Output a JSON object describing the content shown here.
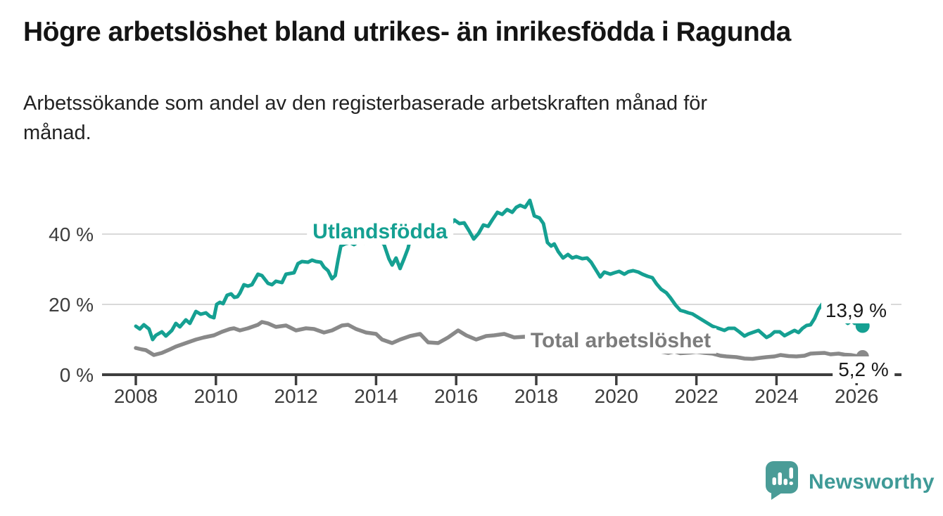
{
  "header": {
    "title": "Högre arbetslöshet bland utrikes- än inrikesfödda i Ragunda",
    "subtitle_line1": "Arbetssökande som andel av den registerbaserade arbetskraften månad för",
    "subtitle_line2": "månad."
  },
  "branding": {
    "logo_text": "Newsworthy",
    "logo_icon": "speech-bubble-bar-chart",
    "logo_color": "#4a9c97",
    "logo_text_color": "#3f9a97"
  },
  "chart_data": {
    "type": "line",
    "title": "Högre arbetslöshet bland utrikes- än inrikesfödda i Ragunda",
    "xlabel": "",
    "ylabel": "",
    "ylim": [
      0,
      52
    ],
    "xlim": [
      2007.2,
      2027.1
    ],
    "grid": "horizontal",
    "y_ticks": [
      {
        "value": 0,
        "label": "0 %"
      },
      {
        "value": 20,
        "label": "20 %"
      },
      {
        "value": 40,
        "label": "40 %"
      }
    ],
    "x_ticks": [
      {
        "value": 2008,
        "label": "2008"
      },
      {
        "value": 2010,
        "label": "2010"
      },
      {
        "value": 2012,
        "label": "2012"
      },
      {
        "value": 2014,
        "label": "2014"
      },
      {
        "value": 2016,
        "label": "2016"
      },
      {
        "value": 2018,
        "label": "2018"
      },
      {
        "value": 2020,
        "label": "2020"
      },
      {
        "value": 2022,
        "label": "2022"
      },
      {
        "value": 2024,
        "label": "2024"
      },
      {
        "value": 2026,
        "label": "2026"
      }
    ],
    "series": [
      {
        "name": "Utlandsfödda",
        "color": "#15a092",
        "end_label": "13,9 %",
        "end_value": 13.9,
        "points": [
          [
            2008.0,
            13.8
          ],
          [
            2008.1,
            13.0
          ],
          [
            2008.2,
            14.2
          ],
          [
            2008.33,
            13.0
          ],
          [
            2008.42,
            10.0
          ],
          [
            2008.5,
            11.2
          ],
          [
            2008.65,
            12.2
          ],
          [
            2008.75,
            11.0
          ],
          [
            2008.9,
            12.6
          ],
          [
            2009.0,
            14.6
          ],
          [
            2009.1,
            13.6
          ],
          [
            2009.25,
            15.6
          ],
          [
            2009.35,
            14.6
          ],
          [
            2009.5,
            18.0
          ],
          [
            2009.62,
            17.2
          ],
          [
            2009.75,
            17.6
          ],
          [
            2009.85,
            16.6
          ],
          [
            2009.95,
            16.2
          ],
          [
            2010.02,
            20.0
          ],
          [
            2010.1,
            20.6
          ],
          [
            2010.18,
            20.2
          ],
          [
            2010.28,
            22.6
          ],
          [
            2010.38,
            23.0
          ],
          [
            2010.46,
            22.0
          ],
          [
            2010.54,
            22.2
          ],
          [
            2010.6,
            23.2
          ],
          [
            2010.7,
            25.6
          ],
          [
            2010.8,
            25.2
          ],
          [
            2010.9,
            25.6
          ],
          [
            2011.05,
            28.6
          ],
          [
            2011.15,
            28.2
          ],
          [
            2011.3,
            26.0
          ],
          [
            2011.4,
            25.6
          ],
          [
            2011.5,
            26.6
          ],
          [
            2011.65,
            26.2
          ],
          [
            2011.75,
            28.6
          ],
          [
            2011.95,
            29.0
          ],
          [
            2012.05,
            31.6
          ],
          [
            2012.15,
            32.2
          ],
          [
            2012.3,
            32.0
          ],
          [
            2012.4,
            32.6
          ],
          [
            2012.5,
            32.2
          ],
          [
            2012.62,
            32.0
          ],
          [
            2012.7,
            30.6
          ],
          [
            2012.8,
            29.6
          ],
          [
            2012.9,
            27.3
          ],
          [
            2012.98,
            28.2
          ],
          [
            2013.05,
            32.6
          ],
          [
            2013.12,
            36.6
          ],
          [
            2013.22,
            37.2
          ],
          [
            2013.35,
            37.6
          ],
          [
            2013.45,
            37.0
          ],
          [
            2013.6,
            38.2
          ],
          [
            2013.7,
            37.5
          ],
          [
            2013.82,
            38.8
          ],
          [
            2013.92,
            38.2
          ],
          [
            2014.0,
            39.2
          ],
          [
            2014.1,
            38.2
          ],
          [
            2014.2,
            37.0
          ],
          [
            2014.32,
            33.0
          ],
          [
            2014.4,
            31.2
          ],
          [
            2014.5,
            33.2
          ],
          [
            2014.6,
            30.2
          ],
          [
            2014.7,
            33.0
          ],
          [
            2014.8,
            36.0
          ],
          [
            2014.9,
            41.0
          ],
          [
            2015.0,
            42.0
          ],
          [
            2015.13,
            42.6
          ],
          [
            2015.25,
            43.0
          ],
          [
            2015.36,
            42.0
          ],
          [
            2015.5,
            42.2
          ],
          [
            2015.6,
            40.6
          ],
          [
            2015.72,
            41.6
          ],
          [
            2015.84,
            42.6
          ],
          [
            2015.96,
            44.0
          ],
          [
            2016.08,
            43.0
          ],
          [
            2016.2,
            43.2
          ],
          [
            2016.32,
            41.0
          ],
          [
            2016.44,
            38.6
          ],
          [
            2016.56,
            40.2
          ],
          [
            2016.68,
            42.6
          ],
          [
            2016.8,
            42.2
          ],
          [
            2016.9,
            44.0
          ],
          [
            2017.03,
            46.2
          ],
          [
            2017.15,
            45.6
          ],
          [
            2017.27,
            47.0
          ],
          [
            2017.4,
            46.2
          ],
          [
            2017.5,
            47.6
          ],
          [
            2017.6,
            48.2
          ],
          [
            2017.72,
            47.6
          ],
          [
            2017.84,
            49.6
          ],
          [
            2017.95,
            45.2
          ],
          [
            2018.08,
            44.6
          ],
          [
            2018.18,
            43.0
          ],
          [
            2018.28,
            37.6
          ],
          [
            2018.37,
            36.6
          ],
          [
            2018.45,
            37.2
          ],
          [
            2018.55,
            35.0
          ],
          [
            2018.67,
            33.2
          ],
          [
            2018.79,
            34.2
          ],
          [
            2018.9,
            33.2
          ],
          [
            2019.0,
            33.6
          ],
          [
            2019.15,
            33.0
          ],
          [
            2019.27,
            33.2
          ],
          [
            2019.37,
            32.0
          ],
          [
            2019.5,
            29.6
          ],
          [
            2019.6,
            27.8
          ],
          [
            2019.7,
            29.2
          ],
          [
            2019.85,
            28.6
          ],
          [
            2019.95,
            29.0
          ],
          [
            2020.07,
            29.4
          ],
          [
            2020.2,
            28.6
          ],
          [
            2020.3,
            29.3
          ],
          [
            2020.42,
            29.6
          ],
          [
            2020.55,
            29.2
          ],
          [
            2020.65,
            28.6
          ],
          [
            2020.78,
            28.0
          ],
          [
            2020.9,
            27.6
          ],
          [
            2021.0,
            25.9
          ],
          [
            2021.12,
            24.3
          ],
          [
            2021.25,
            23.3
          ],
          [
            2021.35,
            21.9
          ],
          [
            2021.48,
            19.8
          ],
          [
            2021.6,
            18.3
          ],
          [
            2021.7,
            18.0
          ],
          [
            2021.8,
            17.6
          ],
          [
            2021.9,
            17.3
          ],
          [
            2022.0,
            16.6
          ],
          [
            2022.2,
            15.2
          ],
          [
            2022.4,
            13.8
          ],
          [
            2022.55,
            13.2
          ],
          [
            2022.7,
            12.6
          ],
          [
            2022.8,
            13.2
          ],
          [
            2022.95,
            13.2
          ],
          [
            2023.07,
            12.2
          ],
          [
            2023.2,
            11.0
          ],
          [
            2023.3,
            11.6
          ],
          [
            2023.45,
            12.2
          ],
          [
            2023.55,
            12.6
          ],
          [
            2023.65,
            11.6
          ],
          [
            2023.75,
            10.6
          ],
          [
            2023.85,
            11.2
          ],
          [
            2023.95,
            12.2
          ],
          [
            2024.08,
            12.2
          ],
          [
            2024.2,
            11.1
          ],
          [
            2024.35,
            12.0
          ],
          [
            2024.45,
            12.6
          ],
          [
            2024.55,
            12.0
          ],
          [
            2024.65,
            13.2
          ],
          [
            2024.75,
            14.0
          ],
          [
            2024.85,
            14.2
          ],
          [
            2024.95,
            16.0
          ],
          [
            2025.05,
            18.6
          ],
          [
            2025.15,
            20.2
          ],
          [
            2025.25,
            20.6
          ],
          [
            2025.33,
            19.6
          ],
          [
            2025.42,
            20.2
          ],
          [
            2025.5,
            18.6
          ],
          [
            2025.6,
            17.0
          ],
          [
            2025.7,
            15.4
          ],
          [
            2025.78,
            14.6
          ],
          [
            2025.88,
            15.4
          ],
          [
            2025.95,
            14.6
          ],
          [
            2026.05,
            15.0
          ],
          [
            2026.15,
            13.9
          ]
        ]
      },
      {
        "name": "Total arbetslöshet",
        "color": "#898989",
        "end_label": "5,2 %",
        "end_value": 5.2,
        "points": [
          [
            2008.0,
            7.6
          ],
          [
            2008.15,
            7.2
          ],
          [
            2008.25,
            7.0
          ],
          [
            2008.45,
            5.6
          ],
          [
            2008.65,
            6.2
          ],
          [
            2008.85,
            7.2
          ],
          [
            2009.0,
            8.0
          ],
          [
            2009.25,
            9.0
          ],
          [
            2009.5,
            10.0
          ],
          [
            2009.7,
            10.6
          ],
          [
            2009.95,
            11.2
          ],
          [
            2010.15,
            12.2
          ],
          [
            2010.35,
            13.0
          ],
          [
            2010.45,
            13.2
          ],
          [
            2010.6,
            12.6
          ],
          [
            2010.8,
            13.2
          ],
          [
            2011.05,
            14.2
          ],
          [
            2011.15,
            15.0
          ],
          [
            2011.3,
            14.6
          ],
          [
            2011.5,
            13.6
          ],
          [
            2011.75,
            14.0
          ],
          [
            2012.0,
            12.6
          ],
          [
            2012.25,
            13.2
          ],
          [
            2012.45,
            13.0
          ],
          [
            2012.7,
            12.0
          ],
          [
            2012.9,
            12.6
          ],
          [
            2013.15,
            14.0
          ],
          [
            2013.3,
            14.2
          ],
          [
            2013.5,
            13.0
          ],
          [
            2013.75,
            12.0
          ],
          [
            2014.0,
            11.6
          ],
          [
            2014.15,
            10.0
          ],
          [
            2014.4,
            9.0
          ],
          [
            2014.6,
            10.0
          ],
          [
            2014.85,
            11.0
          ],
          [
            2015.1,
            11.6
          ],
          [
            2015.3,
            9.2
          ],
          [
            2015.55,
            9.0
          ],
          [
            2015.8,
            10.6
          ],
          [
            2016.05,
            12.6
          ],
          [
            2016.25,
            11.2
          ],
          [
            2016.5,
            10.0
          ],
          [
            2016.75,
            11.0
          ],
          [
            2016.95,
            11.2
          ],
          [
            2017.2,
            11.6
          ],
          [
            2017.45,
            10.6
          ],
          [
            2017.7,
            10.8
          ],
          [
            2018.2,
            10.4
          ],
          [
            2018.7,
            10.0
          ],
          [
            2019.2,
            9.4
          ],
          [
            2019.7,
            8.8
          ],
          [
            2020.2,
            8.0
          ],
          [
            2020.7,
            7.2
          ],
          [
            2021.1,
            6.6
          ],
          [
            2021.3,
            6.2
          ],
          [
            2021.45,
            6.6
          ],
          [
            2021.6,
            6.1
          ],
          [
            2021.85,
            6.3
          ],
          [
            2022.0,
            6.5
          ],
          [
            2022.2,
            6.2
          ],
          [
            2022.4,
            6.0
          ],
          [
            2022.6,
            5.4
          ],
          [
            2022.75,
            5.2
          ],
          [
            2023.0,
            5.0
          ],
          [
            2023.2,
            4.6
          ],
          [
            2023.4,
            4.5
          ],
          [
            2023.6,
            4.8
          ],
          [
            2023.75,
            5.0
          ],
          [
            2023.95,
            5.2
          ],
          [
            2024.1,
            5.6
          ],
          [
            2024.3,
            5.3
          ],
          [
            2024.5,
            5.2
          ],
          [
            2024.7,
            5.4
          ],
          [
            2024.85,
            6.0
          ],
          [
            2025.0,
            6.1
          ],
          [
            2025.2,
            6.2
          ],
          [
            2025.35,
            5.8
          ],
          [
            2025.55,
            6.0
          ],
          [
            2025.7,
            5.7
          ],
          [
            2025.85,
            5.6
          ],
          [
            2026.0,
            5.3
          ],
          [
            2026.15,
            5.2
          ]
        ]
      }
    ],
    "colors": {
      "grid": "#d9d9d9",
      "axis": "#3e3e3e",
      "tick_label": "#3d3d3d"
    }
  }
}
